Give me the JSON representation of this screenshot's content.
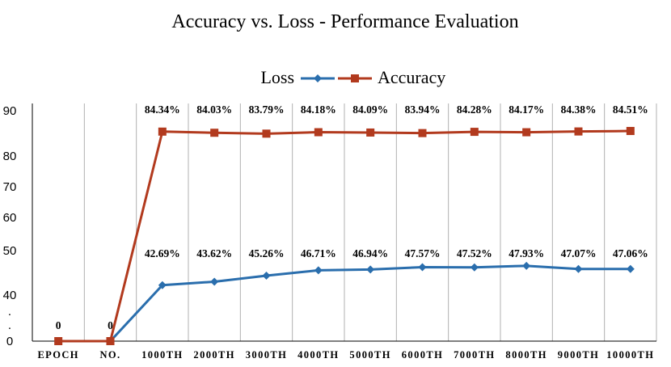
{
  "chart_data": {
    "type": "line",
    "title": "Accuracy vs. Loss - Performance Evaluation",
    "categories": [
      "EPOCH",
      "NO.",
      "1000TH",
      "2000TH",
      "3000TH",
      "4000TH",
      "5000TH",
      "6000TH",
      "7000TH",
      "8000TH",
      "9000TH",
      "10000TH"
    ],
    "y_ticks": [
      "0",
      ".",
      ".",
      "40",
      "50",
      "60",
      "70",
      "80",
      "90"
    ],
    "grid": "vertical",
    "legend_position": "top",
    "series": [
      {
        "name": "Loss",
        "color": "#2a6ead",
        "marker": "diamond",
        "values": [
          0,
          0,
          42.69,
          43.62,
          45.26,
          46.71,
          46.94,
          47.57,
          47.52,
          47.93,
          47.07,
          47.06
        ],
        "labels": [
          "0",
          "0",
          "42.69%",
          "43.62%",
          "45.26%",
          "46.71%",
          "46.94%",
          "47.57%",
          "47.52%",
          "47.93%",
          "47.07%",
          "47.06%"
        ]
      },
      {
        "name": "Accuracy",
        "color": "#b23a1e",
        "marker": "square",
        "values": [
          0,
          0,
          84.34,
          84.03,
          83.79,
          84.18,
          84.09,
          83.94,
          84.28,
          84.17,
          84.38,
          84.51
        ],
        "labels": [
          "",
          "",
          "84.34%",
          "84.03%",
          "83.79%",
          "84.18%",
          "84.09%",
          "83.94%",
          "84.28%",
          "84.17%",
          "84.38%",
          "84.51%"
        ]
      }
    ]
  }
}
